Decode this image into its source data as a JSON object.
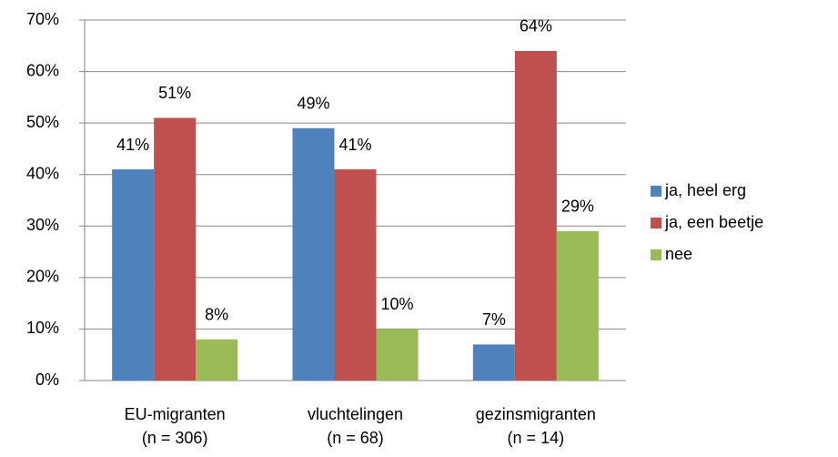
{
  "chart_data": {
    "type": "bar",
    "categories": [
      [
        "EU-migranten",
        "(n = 306)"
      ],
      [
        "vluchtelingen",
        "(n = 68)"
      ],
      [
        "gezinsmigranten",
        "(n = 14)"
      ]
    ],
    "series": [
      {
        "name": "ja, heel erg",
        "color": "#4f81bd",
        "values": [
          41,
          49,
          7
        ],
        "value_labels": [
          "41%",
          "49%",
          "7%"
        ]
      },
      {
        "name": "ja, een beetje",
        "color": "#c0504d",
        "values": [
          51,
          41,
          64
        ],
        "value_labels": [
          "51%",
          "41%",
          "64%"
        ]
      },
      {
        "name": "nee",
        "color": "#9bbb59",
        "values": [
          8,
          10,
          29
        ],
        "value_labels": [
          "8%",
          "10%",
          "29%"
        ]
      }
    ],
    "ylim": [
      0,
      70
    ],
    "yticks": [
      {
        "value": 0,
        "label": "0%"
      },
      {
        "value": 10,
        "label": "10%"
      },
      {
        "value": 20,
        "label": "20%"
      },
      {
        "value": 30,
        "label": "30%"
      },
      {
        "value": 40,
        "label": "40%"
      },
      {
        "value": 50,
        "label": "50%"
      },
      {
        "value": 60,
        "label": "60%"
      },
      {
        "value": 70,
        "label": "70%"
      }
    ],
    "grid": true,
    "legend": "right"
  }
}
